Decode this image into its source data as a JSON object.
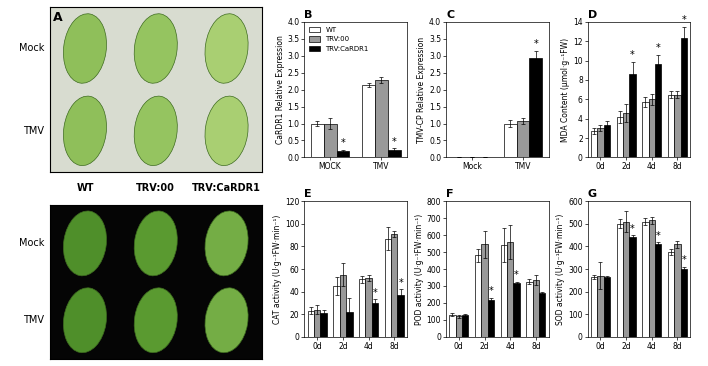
{
  "image_panel": {
    "title": "A",
    "row_labels": [
      "Mock",
      "TMV"
    ],
    "column_labels": [
      "WT",
      "TRV:00",
      "TRV:CaRDR1"
    ]
  },
  "chart_data": [
    {
      "type": "bar",
      "title": "B",
      "y_label": "CaRDR1 Relative Expression",
      "categories": [
        "MOCK",
        "TMV"
      ],
      "series": [
        {
          "name": "WT",
          "color": "#ffffff",
          "values": [
            1.0,
            2.15
          ],
          "errors": [
            0.08,
            0.06
          ]
        },
        {
          "name": "TRV:00",
          "color": "#999999",
          "values": [
            1.0,
            2.28
          ],
          "errors": [
            0.15,
            0.08
          ]
        },
        {
          "name": "TRV:CaRDR1",
          "color": "#000000",
          "values": [
            0.2,
            0.22
          ],
          "errors": [
            0.03,
            0.05
          ]
        }
      ],
      "ylim": [
        0,
        4.0
      ],
      "yticks": [
        {
          "value": 0,
          "label": "0.0"
        },
        {
          "value": 0.5,
          "label": "0.5"
        },
        {
          "value": 1.0,
          "label": "1.0"
        },
        {
          "value": 1.5,
          "label": "1.5"
        },
        {
          "value": 2.0,
          "label": "2.0"
        },
        {
          "value": 2.5,
          "label": "2.5"
        },
        {
          "value": 3.0,
          "label": "3.0"
        },
        {
          "value": 3.5,
          "label": "3.5"
        },
        {
          "value": 4.0,
          "label": "4.0"
        }
      ],
      "legend": "upper left",
      "annotations": [
        {
          "text": "*",
          "series": "TRV:CaRDR1",
          "category": "MOCK"
        },
        {
          "text": "*",
          "series": "TRV:CaRDR1",
          "category": "TMV"
        }
      ]
    },
    {
      "type": "bar",
      "title": "C",
      "y_label": "TMV-CP Relative Expression",
      "categories": [
        "Mock",
        "TMV"
      ],
      "series": [
        {
          "name": "WT",
          "color": "#ffffff",
          "values": [
            0,
            1.0
          ],
          "errors": [
            0,
            0.1
          ]
        },
        {
          "name": "TRV:00",
          "color": "#999999",
          "values": [
            0,
            1.08
          ],
          "errors": [
            0,
            0.08
          ]
        },
        {
          "name": "TRV:CaRDR1",
          "color": "#000000",
          "values": [
            0,
            2.95
          ],
          "errors": [
            0,
            0.2
          ]
        }
      ],
      "ylim": [
        0,
        4.0
      ],
      "yticks": [
        {
          "value": 0,
          "label": "0.0"
        },
        {
          "value": 0.5,
          "label": "0.5"
        },
        {
          "value": 1.0,
          "label": "1.0"
        },
        {
          "value": 1.5,
          "label": "1.5"
        },
        {
          "value": 2.0,
          "label": "2.0"
        },
        {
          "value": 2.5,
          "label": "2.5"
        },
        {
          "value": 3.0,
          "label": "3.0"
        },
        {
          "value": 3.5,
          "label": "3.5"
        },
        {
          "value": 4.0,
          "label": "4.0"
        }
      ],
      "annotations": [
        {
          "text": "*",
          "series": "TRV:CaRDR1",
          "category": "TMV"
        }
      ]
    },
    {
      "type": "bar",
      "title": "D",
      "y_label": "MDA Content (μmol·g⁻¹FW)",
      "categories": [
        "0d",
        "2d",
        "4d",
        "8d"
      ],
      "series": [
        {
          "name": "WT",
          "color": "#ffffff",
          "values": [
            2.7,
            4.2,
            5.7,
            6.5
          ],
          "errors": [
            0.3,
            0.6,
            0.5,
            0.4
          ]
        },
        {
          "name": "TRV:00",
          "color": "#999999",
          "values": [
            3.0,
            4.6,
            6.0,
            6.5
          ],
          "errors": [
            0.3,
            0.9,
            0.6,
            0.4
          ]
        },
        {
          "name": "TRV:CaRDR1",
          "color": "#000000",
          "values": [
            3.3,
            8.6,
            9.7,
            12.3
          ],
          "errors": [
            0.5,
            1.3,
            0.9,
            1.2
          ]
        }
      ],
      "ylim": [
        0,
        14
      ],
      "yticks": [
        0,
        2,
        4,
        6,
        8,
        10,
        12,
        14
      ],
      "annotations": [
        {
          "text": "*",
          "series": "TRV:CaRDR1",
          "category": "2d"
        },
        {
          "text": "*",
          "series": "TRV:CaRDR1",
          "category": "4d"
        },
        {
          "text": "*",
          "series": "TRV:CaRDR1",
          "category": "8d"
        }
      ]
    },
    {
      "type": "bar",
      "title": "E",
      "y_label": "CAT activity (U·g⁻¹FW·min⁻¹)",
      "categories": [
        "0d",
        "2d",
        "4d",
        "8d"
      ],
      "series": [
        {
          "name": "WT",
          "color": "#ffffff",
          "values": [
            23,
            45,
            51,
            87
          ],
          "errors": [
            3,
            8,
            3,
            10
          ]
        },
        {
          "name": "TRV:00",
          "color": "#999999",
          "values": [
            24,
            55,
            52,
            91
          ],
          "errors": [
            4,
            10,
            3,
            3
          ]
        },
        {
          "name": "TRV:CaRDR1",
          "color": "#000000",
          "values": [
            21,
            22,
            30,
            37
          ],
          "errors": [
            3,
            12,
            3,
            5
          ]
        }
      ],
      "ylim": [
        0,
        120
      ],
      "yticks": [
        0,
        20,
        40,
        60,
        80,
        100,
        120
      ],
      "annotations": [
        {
          "text": "*",
          "series": "TRV:CaRDR1",
          "category": "4d"
        },
        {
          "text": "*",
          "series": "TRV:CaRDR1",
          "category": "8d"
        }
      ]
    },
    {
      "type": "bar",
      "title": "F",
      "y_label": "POD activity (U·g⁻¹FW·min⁻¹)",
      "categories": [
        "0d",
        "2d",
        "4d",
        "8d"
      ],
      "series": [
        {
          "name": "WT",
          "color": "#ffffff",
          "values": [
            130,
            480,
            540,
            325
          ],
          "errors": [
            10,
            40,
            100,
            15
          ]
        },
        {
          "name": "TRV:00",
          "color": "#999999",
          "values": [
            120,
            545,
            560,
            335
          ],
          "errors": [
            10,
            80,
            100,
            30
          ]
        },
        {
          "name": "TRV:CaRDR1",
          "color": "#000000",
          "values": [
            130,
            215,
            315,
            258
          ],
          "errors": [
            5,
            15,
            10,
            5
          ]
        }
      ],
      "ylim": [
        0,
        800
      ],
      "yticks": [
        0,
        100,
        200,
        300,
        400,
        500,
        600,
        700,
        800
      ],
      "annotations": [
        {
          "text": "*",
          "series": "TRV:CaRDR1",
          "category": "2d"
        },
        {
          "text": "*",
          "series": "TRV:CaRDR1",
          "category": "4d"
        }
      ]
    },
    {
      "type": "bar",
      "title": "G",
      "y_label": "SOD activity (U·g⁻¹FW·min⁻¹)",
      "categories": [
        "0d",
        "2d",
        "4d",
        "8d"
      ],
      "series": [
        {
          "name": "WT",
          "color": "#ffffff",
          "values": [
            265,
            500,
            510,
            375
          ],
          "errors": [
            10,
            20,
            15,
            15
          ]
        },
        {
          "name": "TRV:00",
          "color": "#999999",
          "values": [
            270,
            510,
            515,
            410
          ],
          "errors": [
            60,
            45,
            15,
            15
          ]
        },
        {
          "name": "TRV:CaRDR1",
          "color": "#000000",
          "values": [
            265,
            440,
            410,
            300
          ],
          "errors": [
            5,
            10,
            10,
            10
          ]
        }
      ],
      "ylim": [
        0,
        600
      ],
      "yticks": [
        0,
        100,
        200,
        300,
        400,
        500,
        600
      ],
      "annotations": [
        {
          "text": "*",
          "series": "TRV:CaRDR1",
          "category": "2d"
        },
        {
          "text": "*",
          "series": "TRV:CaRDR1",
          "category": "4d"
        },
        {
          "text": "*",
          "series": "TRV:CaRDR1",
          "category": "8d"
        }
      ]
    }
  ]
}
